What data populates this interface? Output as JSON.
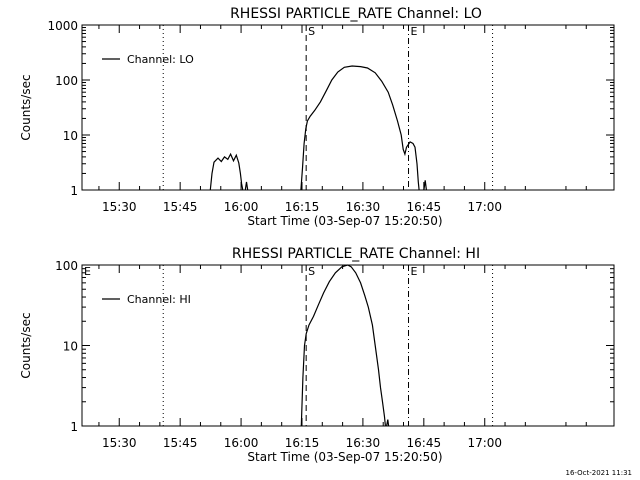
{
  "chart_data": [
    {
      "type": "line",
      "title": "RHESSI PARTICLE_RATE Channel: LO",
      "xlabel": "Start Time (03-Sep-07 15:20:50)",
      "ylabel": "Counts/sec",
      "yscale": "log",
      "ylim": [
        1,
        1000
      ],
      "xlim_minutes": [
        0,
        131
      ],
      "x_ticks": [
        {
          "min": 9.17,
          "label": "15:30"
        },
        {
          "min": 24.17,
          "label": "15:45"
        },
        {
          "min": 39.17,
          "label": "16:00"
        },
        {
          "min": 54.17,
          "label": "16:15"
        },
        {
          "min": 69.17,
          "label": "16:30"
        },
        {
          "min": 84.17,
          "label": "16:45"
        },
        {
          "min": 99.17,
          "label": "17:00"
        }
      ],
      "y_ticks": [
        {
          "v": 1,
          "label": "1"
        },
        {
          "v": 10,
          "label": "10"
        },
        {
          "v": 100,
          "label": "100"
        },
        {
          "v": 1000,
          "label": "1000"
        }
      ],
      "legend": {
        "label": "Channel: LO",
        "position": "top-left"
      },
      "markers": [
        {
          "min": 20.0,
          "style": "dotted",
          "label": ""
        },
        {
          "min": 55.2,
          "style": "dashed",
          "label": "S"
        },
        {
          "min": 80.4,
          "style": "dashdot",
          "label": "E"
        },
        {
          "min": 101.1,
          "style": "dotted",
          "label": ""
        }
      ],
      "segments": [
        [
          [
            31.6,
            1
          ],
          [
            32.0,
            2
          ],
          [
            32.5,
            3.2
          ],
          [
            33.5,
            3.8
          ],
          [
            34.3,
            3.3
          ],
          [
            35.1,
            4.0
          ],
          [
            35.9,
            3.6
          ],
          [
            36.6,
            4.5
          ],
          [
            37.3,
            3.4
          ],
          [
            38.0,
            4.3
          ],
          [
            38.6,
            3.1
          ],
          [
            39.0,
            2.0
          ],
          [
            39.3,
            1.3
          ],
          [
            39.6,
            1
          ]
        ],
        [
          [
            40.2,
            1
          ],
          [
            40.5,
            1.4
          ],
          [
            40.8,
            1
          ]
        ],
        [
          [
            53.9,
            1
          ],
          [
            54.3,
            2.5
          ],
          [
            54.7,
            7
          ],
          [
            55.1,
            13
          ],
          [
            55.5,
            18
          ],
          [
            56.2,
            22
          ],
          [
            57.3,
            28
          ],
          [
            58.7,
            40
          ],
          [
            60.2,
            65
          ],
          [
            61.5,
            100
          ],
          [
            63.0,
            140
          ],
          [
            64.6,
            170
          ],
          [
            66.5,
            180
          ],
          [
            68.6,
            175
          ],
          [
            70.3,
            165
          ],
          [
            72.2,
            135
          ],
          [
            73.8,
            95
          ],
          [
            75.4,
            60
          ],
          [
            76.5,
            35
          ],
          [
            77.7,
            18
          ],
          [
            78.6,
            10
          ],
          [
            79.1,
            5.5
          ],
          [
            79.5,
            4.5
          ],
          [
            79.9,
            6
          ],
          [
            80.8,
            7.5
          ],
          [
            81.5,
            7
          ],
          [
            82.0,
            6
          ],
          [
            82.5,
            3
          ],
          [
            82.8,
            1.4
          ],
          [
            83.0,
            1
          ]
        ],
        [
          [
            84.2,
            1
          ],
          [
            84.5,
            1.5
          ],
          [
            84.8,
            1
          ]
        ]
      ]
    },
    {
      "type": "line",
      "title": "RHESSI PARTICLE_RATE Channel: HI",
      "xlabel": "Start Time (03-Sep-07 15:20:50)",
      "ylabel": "Counts/sec",
      "yscale": "log",
      "ylim": [
        1,
        100
      ],
      "xlim_minutes": [
        0,
        131
      ],
      "x_ticks": [
        {
          "min": 9.17,
          "label": "15:30"
        },
        {
          "min": 24.17,
          "label": "15:45"
        },
        {
          "min": 39.17,
          "label": "16:00"
        },
        {
          "min": 54.17,
          "label": "16:15"
        },
        {
          "min": 69.17,
          "label": "16:30"
        },
        {
          "min": 84.17,
          "label": "16:45"
        },
        {
          "min": 99.17,
          "label": "17:00"
        }
      ],
      "y_ticks": [
        {
          "v": 1,
          "label": "1"
        },
        {
          "v": 10,
          "label": "10"
        },
        {
          "v": 100,
          "label": "100"
        }
      ],
      "legend": {
        "label": "Channel: HI",
        "position": "top-left"
      },
      "markers": [
        {
          "min": 0.0,
          "style": "none",
          "label": "E"
        },
        {
          "min": 20.0,
          "style": "dotted",
          "label": ""
        },
        {
          "min": 55.2,
          "style": "dashed",
          "label": "S"
        },
        {
          "min": 80.4,
          "style": "dashdot",
          "label": "E"
        },
        {
          "min": 101.1,
          "style": "dotted",
          "label": ""
        }
      ],
      "segments": [
        [
          [
            54.0,
            1
          ],
          [
            54.4,
            4
          ],
          [
            54.8,
            10
          ],
          [
            55.2,
            14
          ],
          [
            55.9,
            18
          ],
          [
            57.0,
            23
          ],
          [
            58.2,
            32
          ],
          [
            59.5,
            45
          ],
          [
            60.9,
            62
          ],
          [
            62.4,
            80
          ],
          [
            64.0,
            95
          ],
          [
            65.4,
            100
          ],
          [
            66.3,
            95
          ],
          [
            67.4,
            80
          ],
          [
            68.6,
            60
          ],
          [
            69.6,
            42
          ],
          [
            70.5,
            30
          ],
          [
            71.5,
            18
          ],
          [
            72.2,
            10
          ],
          [
            73.0,
            5
          ],
          [
            73.5,
            3
          ],
          [
            74.0,
            2
          ],
          [
            74.5,
            1.3
          ],
          [
            74.7,
            1
          ]
        ],
        [
          [
            75.0,
            1
          ],
          [
            75.3,
            1.2
          ],
          [
            75.5,
            1
          ]
        ]
      ]
    }
  ],
  "footer": {
    "timestamp": "16-Oct-2021 11:31"
  }
}
